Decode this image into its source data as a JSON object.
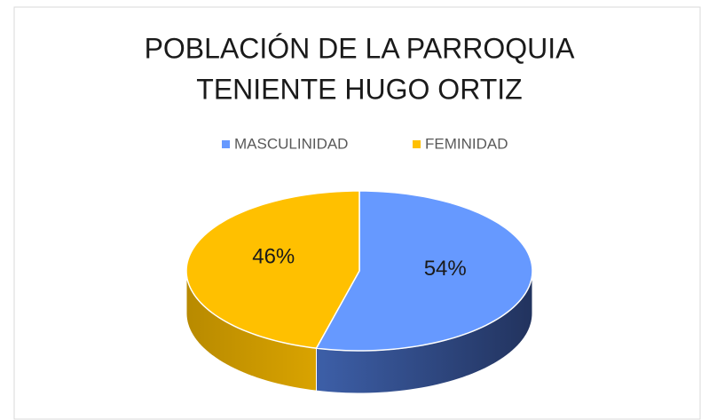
{
  "chart_data": {
    "type": "pie",
    "title": [
      "POBLACIÓN DE LA PARROQUIA",
      "TENIENTE HUGO ORTIZ"
    ],
    "categories": [
      "MASCULINIDAD",
      "FEMINIDAD"
    ],
    "values": [
      54,
      46
    ],
    "value_labels": [
      "54%",
      "46%"
    ],
    "colors": [
      "#6699ff",
      "#ffc000"
    ],
    "legend": "top"
  }
}
